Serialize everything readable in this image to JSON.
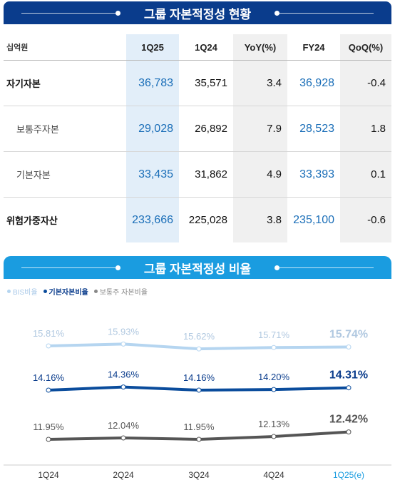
{
  "capital_table": {
    "title": "그룹 자본적정성 현황",
    "unit": "십억원",
    "columns": [
      "1Q25",
      "1Q24",
      "YoY(%)",
      "FY24",
      "QoQ(%)"
    ],
    "rows": [
      {
        "label": "자기자본",
        "values": [
          "36,783",
          "35,571",
          "3.4",
          "36,928",
          "-0.4"
        ]
      },
      {
        "label": "보통주자본",
        "values": [
          "29,028",
          "26,892",
          "7.9",
          "28,523",
          "1.8"
        ]
      },
      {
        "label": "기본자본",
        "values": [
          "33,435",
          "31,862",
          "4.9",
          "33,393",
          "0.1"
        ]
      },
      {
        "label": "위험가중자산",
        "values": [
          "233,666",
          "225,028",
          "3.8",
          "235,100",
          "-0.6"
        ]
      }
    ]
  },
  "chart_title": "그룹 자본적정성 비율",
  "colors": {
    "dark_blue": "#0a3c8c",
    "light_blue": "#1a9ce0",
    "bis": "#b5d5f0",
    "tier1": "#0a4c9c",
    "cet1": "#555555",
    "highlight_cell": "#e2eef9"
  },
  "chart_data": {
    "type": "line",
    "title": "그룹 자본적정성 비율",
    "categories": [
      "1Q24",
      "2Q24",
      "3Q24",
      "4Q24",
      "1Q25(e)"
    ],
    "series": [
      {
        "name": "BIS비율",
        "values": [
          15.81,
          15.93,
          15.62,
          15.71,
          15.74
        ],
        "labels": [
          "15.81%",
          "15.93%",
          "15.62%",
          "15.71%",
          "15.74%"
        ],
        "color": "#b5d5f0",
        "label_color": "#b0c8e0"
      },
      {
        "name": "기본자본비율",
        "values": [
          14.16,
          14.36,
          14.16,
          14.2,
          14.31
        ],
        "labels": [
          "14.16%",
          "14.36%",
          "14.16%",
          "14.20%",
          "14.31%"
        ],
        "color": "#0a4c9c",
        "label_color": "#0a3c8c"
      },
      {
        "name": "보통주 자본비율",
        "values": [
          11.95,
          12.04,
          11.95,
          12.13,
          12.42
        ],
        "labels": [
          "11.95%",
          "12.04%",
          "11.95%",
          "12.13%",
          "12.42%"
        ],
        "color": "#555555",
        "label_color": "#555555"
      }
    ],
    "legend_position": "top-left",
    "grid": false
  }
}
